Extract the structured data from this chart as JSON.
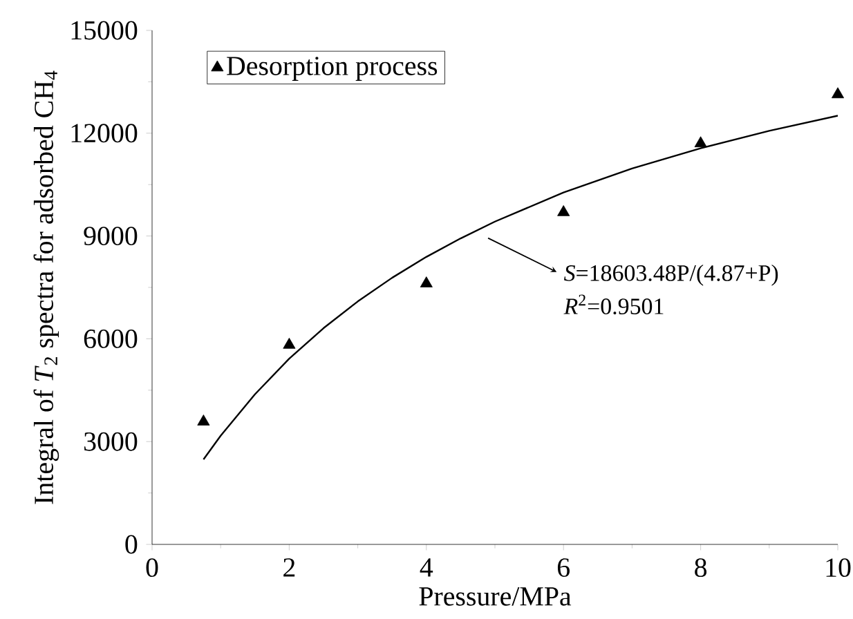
{
  "chart_data": {
    "type": "scatter",
    "xlabel": "Pressure/MPa",
    "ylabel": "Integral of *T*$_{2}$ spectra for adsorbed CH$_{4}$",
    "xlim": [
      0,
      10
    ],
    "ylim": [
      0,
      15000
    ],
    "xticks": [
      0,
      2,
      4,
      6,
      8,
      10
    ],
    "yticks": [
      0,
      3000,
      6000,
      9000,
      12000,
      15000
    ],
    "legend": "top left",
    "marker": "triangle",
    "series": [
      {
        "name": "Desorption process",
        "color": "#000000",
        "x": [
          0.75,
          2,
          4,
          6,
          8,
          10
        ],
        "values": [
          3580,
          5820,
          7610,
          9690,
          11700,
          13130
        ]
      },
      {
        "type": "line",
        "color": "#000000",
        "marker": "none",
        "x": [
          0.75,
          1,
          1.5,
          2,
          2.5,
          3,
          3.5,
          4,
          4.5,
          5,
          6,
          7,
          8,
          9,
          10
        ],
        "values": [
          2480,
          3170,
          4380,
          5420,
          6310,
          7090,
          7780,
          8390,
          8930,
          9420,
          10270,
          10970,
          11560,
          12070,
          12510
        ]
      }
    ],
    "annotations": [
      "*S*=18603.48P/(4.87+P)",
      "*R*$^{2}$=0.9501"
    ]
  }
}
